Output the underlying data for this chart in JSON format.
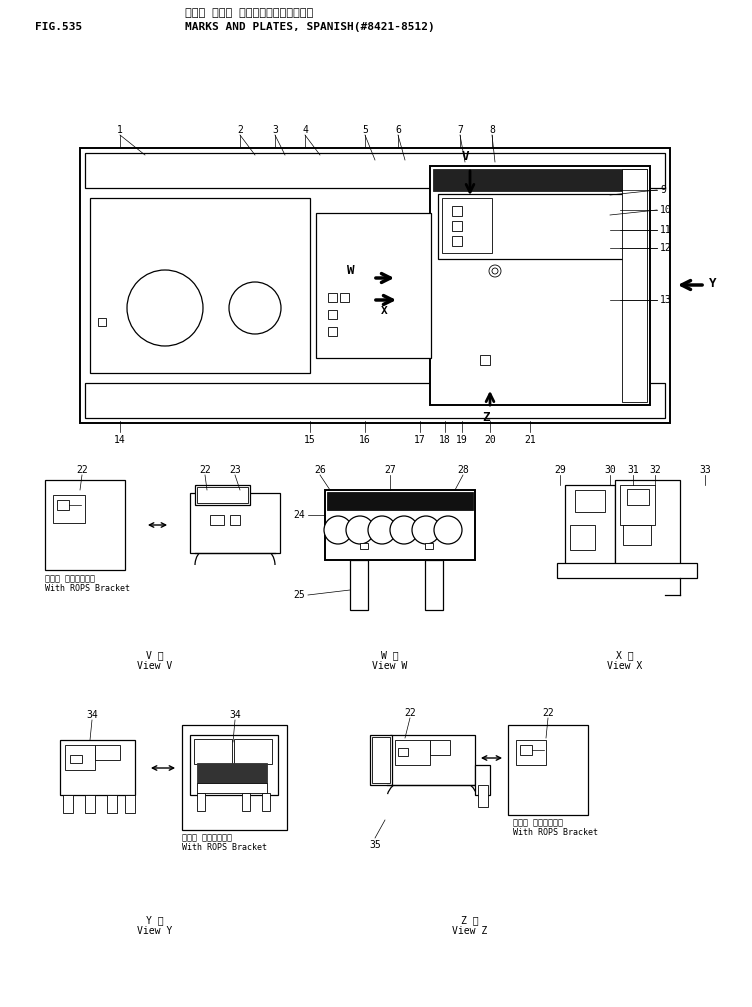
{
  "title_japanese": "マーク オヨビ プレート（スペインゴ）",
  "title_english": "MARKS AND PLATES, SPANISH(#8421-8512)",
  "fig_number": "FIG.535",
  "bg_color": "#ffffff",
  "line_color": "#000000",
  "fig_width": 7.52,
  "fig_height": 10.07,
  "dpi": 100,
  "rops_text_jp": "ロプス ブラケット付",
  "rops_text_en": "With ROPS Bracket",
  "view_v_label": "V 視\nView V",
  "view_w_label": "W 視\nView W",
  "view_x_label": "X 視\nView X",
  "view_y_label": "Y 視\nView Y",
  "view_z_label": "Z 視\nView Z"
}
